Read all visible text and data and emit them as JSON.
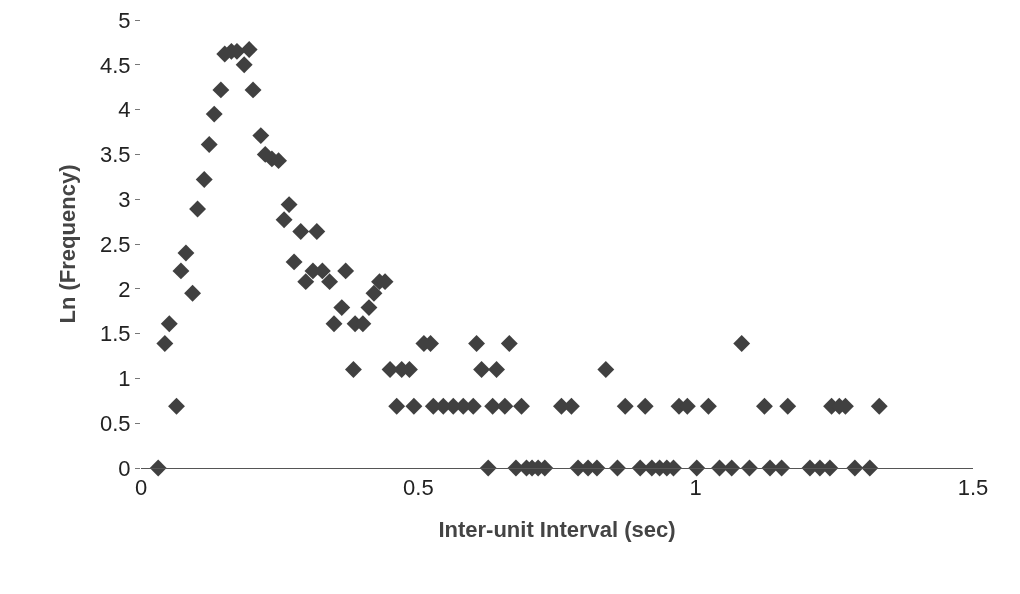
{
  "chart_data": {
    "type": "scatter",
    "xlabel": "Inter-unit Interval (sec)",
    "ylabel": "Ln (Frequency)",
    "x": [
      0.031,
      0.064,
      0.043,
      0.051,
      0.093,
      0.072,
      0.081,
      0.102,
      0.114,
      0.123,
      0.132,
      0.144,
      0.151,
      0.163,
      0.173,
      0.195,
      0.186,
      0.202,
      0.216,
      0.224,
      0.236,
      0.248,
      0.267,
      0.258,
      0.288,
      0.317,
      0.276,
      0.297,
      0.31,
      0.327,
      0.34,
      0.369,
      0.43,
      0.44,
      0.42,
      0.411,
      0.362,
      0.348,
      0.386,
      0.4,
      0.51,
      0.522,
      0.605,
      0.383,
      0.449,
      0.47,
      0.484,
      0.614,
      0.641,
      0.461,
      0.492,
      0.527,
      0.545,
      0.563,
      0.581,
      0.599,
      0.634,
      0.626,
      0.664,
      0.838,
      0.656,
      0.686,
      0.758,
      0.776,
      0.873,
      0.909,
      0.97,
      0.985,
      1.023,
      1.083,
      0.676,
      0.695,
      0.705,
      0.716,
      0.728,
      0.788,
      0.806,
      0.822,
      0.859,
      0.9,
      0.921,
      0.935,
      0.948,
      0.96,
      1.002,
      1.043,
      1.065,
      1.124,
      1.166,
      1.245,
      1.259,
      1.27,
      1.331,
      1.097,
      1.134,
      1.155,
      1.206,
      1.224,
      1.242,
      1.287,
      1.314
    ],
    "values": [
      0,
      0.69,
      1.39,
      1.61,
      1.95,
      2.2,
      2.4,
      2.89,
      3.22,
      3.61,
      3.95,
      4.22,
      4.62,
      4.65,
      4.65,
      4.67,
      4.5,
      4.22,
      3.71,
      3.5,
      3.45,
      3.43,
      2.94,
      2.77,
      2.64,
      2.64,
      2.3,
      2.08,
      2.2,
      2.2,
      2.08,
      2.2,
      2.08,
      2.08,
      1.95,
      1.79,
      1.79,
      1.61,
      1.61,
      1.61,
      1.39,
      1.39,
      1.39,
      1.1,
      1.1,
      1.1,
      1.1,
      1.1,
      1.1,
      0.69,
      0.69,
      0.69,
      0.69,
      0.69,
      0.69,
      0.69,
      0.69,
      0,
      1.39,
      1.1,
      0.69,
      0.69,
      0.69,
      0.69,
      0.69,
      0.69,
      0.69,
      0.69,
      0.69,
      1.39,
      0,
      0,
      0,
      0,
      0,
      0,
      0,
      0,
      0,
      0,
      0,
      0,
      0,
      0,
      0,
      0,
      0,
      0.69,
      0.69,
      0.69,
      0.69,
      0.69,
      0.69,
      0,
      0,
      0,
      0,
      0,
      0,
      0,
      0
    ],
    "color": "#404040",
    "marker": "diamond",
    "xlim": [
      0,
      1.5
    ],
    "xticks": [
      0,
      0.5,
      1,
      1.5
    ],
    "ylim": [
      0,
      5
    ],
    "yticks": [
      0,
      0.5,
      1,
      1.5,
      2,
      2.5,
      3,
      3.5,
      4,
      4.5,
      5
    ],
    "grid": false
  }
}
